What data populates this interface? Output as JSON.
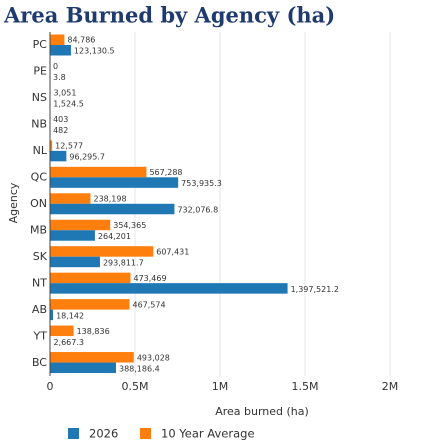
{
  "chart_data": {
    "type": "bar",
    "orientation": "horizontal",
    "title": "Area Burned by Agency (ha)",
    "x_label": "Area burned (ha)",
    "y_label": "Agency",
    "categories": [
      "PC",
      "PE",
      "NS",
      "NB",
      "NL",
      "QC",
      "ON",
      "MB",
      "SK",
      "NT",
      "AB",
      "YT",
      "BC"
    ],
    "series": [
      {
        "name": "2026",
        "color": "#1f77b4",
        "values": [
          123130.5,
          3.8,
          1524.5,
          482,
          96295.7,
          753935.3,
          732076.8,
          264201,
          293811.7,
          1397521.2,
          18142,
          2667.3,
          388186.4
        ],
        "value_labels": [
          "123,130.5",
          "3.8",
          "1,524.5",
          "482",
          "96,295.7",
          "753,935.3",
          "732,076.8",
          "264,201",
          "293,811.7",
          "1,397,521.2",
          "18,142",
          "2,667.3",
          "388,186.4"
        ]
      },
      {
        "name": "10 Year Average",
        "color": "#ff7f0e",
        "values": [
          84786,
          0,
          3051,
          403,
          12577,
          567288,
          238198,
          354365,
          607431,
          473469,
          467574,
          138836,
          493028
        ],
        "value_labels": [
          "84,786",
          "0",
          "3,051",
          "403",
          "12,577",
          "567,288",
          "238,198",
          "354,365",
          "607,431",
          "473,469",
          "467,574",
          "138,836",
          "493,028"
        ]
      }
    ],
    "xlim": [
      0,
      2200000
    ],
    "xticks": [
      0,
      {
        "value": 500000,
        "label": "0.5M"
      },
      {
        "value": 1000000,
        "label": "1M"
      },
      {
        "value": 1500000,
        "label": "1.5M"
      },
      {
        "value": 2000000,
        "label": "2M"
      }
    ],
    "grid": true,
    "legend": "bottom"
  }
}
